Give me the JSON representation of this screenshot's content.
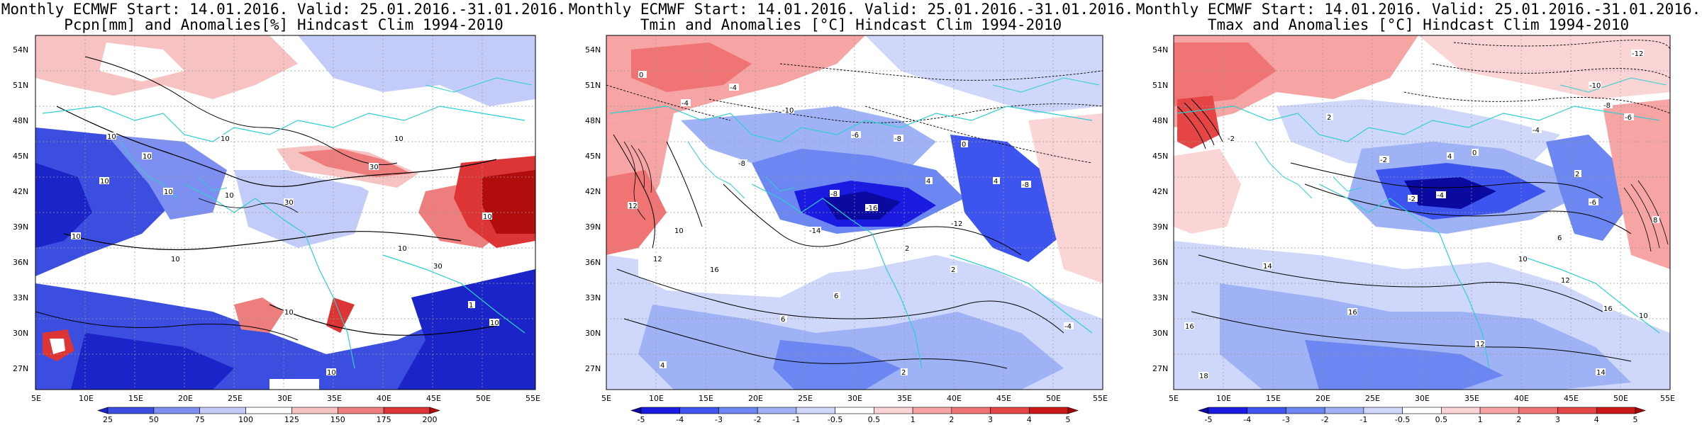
{
  "panels": [
    {
      "title_line1": "Monthly ECMWF Start: 14.01.2016. Valid: 25.01.2016.-31.01.2016.",
      "title_line2": "Pcpn[mm] and Anomalies[%] Hindcast Clim 1994-2010",
      "colorbar": {
        "labels": [
          "25",
          "50",
          "75",
          "100",
          "125",
          "150",
          "175",
          "200"
        ],
        "colors": [
          "#1b24c8",
          "#3b4ee0",
          "#7d8ff0",
          "#c3ccf8",
          "#ffffff",
          "#f6c2c2",
          "#ee7d7d",
          "#dd3535",
          "#b20d0d"
        ]
      },
      "contour_labels": [
        "10",
        "10",
        "10",
        "10",
        "10",
        "10",
        "10",
        "10",
        "10",
        "10",
        "10",
        "30",
        "30",
        "30",
        "10",
        "10",
        "1",
        "10"
      ]
    },
    {
      "title_line1": "Monthly ECMWF Start: 14.01.2016. Valid: 25.01.2016.-31.01.2016.",
      "title_line2": "Tmin and Anomalies [°C] Hindcast Clim 1994-2010",
      "colorbar": {
        "labels": [
          "-5",
          "-4",
          "-3",
          "-2",
          "-1",
          "-0.5",
          "0.5",
          "1",
          "2",
          "3",
          "4",
          "5"
        ],
        "colors": [
          "#0a0aa0",
          "#1a1ae0",
          "#3e54ee",
          "#6c86f2",
          "#9fb2f6",
          "#cfd7fa",
          "#ffffff",
          "#fbd5d5",
          "#f6a4a4",
          "#f07474",
          "#e54545",
          "#cc1818",
          "#a00808"
        ]
      },
      "contour_labels": [
        "0",
        "-4",
        "-4",
        "-10",
        "-6",
        "-8",
        "-8",
        "-8",
        "-16",
        "-14",
        "-12",
        "4",
        "2",
        "2",
        "4",
        "12",
        "10",
        "6",
        "2",
        "-4",
        "-8",
        "0",
        "12",
        "16",
        "6",
        "4"
      ]
    },
    {
      "title_line1": "Monthly ECMWF Start: 14.01.2016. Valid: 25.01.2016.-31.01.2016.",
      "title_line2": "Tmax and Anomalies [°C] Hindcast Clim 1994-2010",
      "colorbar": {
        "labels": [
          "-5",
          "-4",
          "-3",
          "-2",
          "-1",
          "-0.5",
          "0.5",
          "1",
          "2",
          "3",
          "4",
          "5"
        ],
        "colors": [
          "#0a0aa0",
          "#1a1ae0",
          "#3e54ee",
          "#6c86f2",
          "#9fb2f6",
          "#cfd7fa",
          "#ffffff",
          "#fbd5d5",
          "#f6a4a4",
          "#f07474",
          "#e54545",
          "#cc1818",
          "#a00808"
        ]
      },
      "contour_labels": [
        "-12",
        "-10",
        "-8",
        "-6",
        "-4",
        "-2",
        "2",
        "0",
        "4",
        "-2",
        "-4",
        "-6",
        "2",
        "6",
        "10",
        "12",
        "14",
        "16",
        "16",
        "18",
        "16",
        "14",
        "12",
        "10",
        "8",
        "-2"
      ]
    }
  ],
  "map_axes": {
    "lat_labels": [
      "54N",
      "51N",
      "48N",
      "45N",
      "42N",
      "39N",
      "36N",
      "33N",
      "30N",
      "27N"
    ],
    "lon_labels": [
      "5E",
      "10E",
      "15E",
      "20E",
      "25E",
      "30E",
      "35E",
      "40E",
      "45E",
      "50E",
      "55E"
    ]
  }
}
